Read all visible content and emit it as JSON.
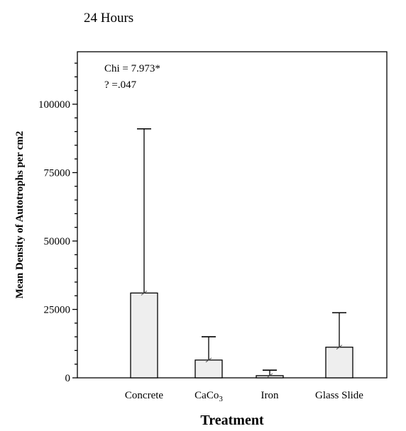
{
  "chart_data": {
    "type": "bar",
    "title": "24 Hours",
    "xlabel": "Treatment",
    "ylabel": "Mean Density of Autotrophs per cm2",
    "categories": [
      {
        "base": "Concrete",
        "sub": ""
      },
      {
        "base": "CaCo",
        "sub": "3"
      },
      {
        "base": "Iron",
        "sub": ""
      },
      {
        "base": "Glass Slide",
        "sub": ""
      }
    ],
    "values": [
      31000,
      6500,
      800,
      11200
    ],
    "error_upper": [
      91000,
      15000,
      2800,
      23800
    ],
    "ylim": [
      0,
      120000
    ],
    "yticks": [
      0,
      25000,
      50000,
      75000,
      100000
    ],
    "ytick_labels": [
      "0",
      "25000",
      "50000",
      "75000",
      "100000"
    ],
    "minor_tick_step": 5000,
    "annotations": [
      "Chi = 7.973*",
      "? =.047"
    ],
    "bar_fill": "#eeeeee",
    "grid": false,
    "legend": "none"
  }
}
